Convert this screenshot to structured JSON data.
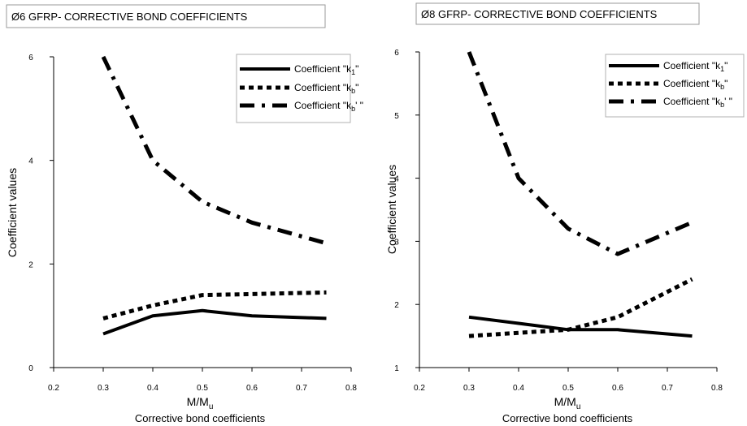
{
  "chart_data": [
    {
      "type": "line",
      "title": "Ø6 GFRP- CORRECTIVE BOND COEFFICIENTS",
      "xlabel_main": "M/M",
      "xlabel_sub": "u",
      "ylabel": "Coefficient values",
      "caption": "Corrective bond coefficients",
      "xlim": [
        0.2,
        0.8
      ],
      "ylim": [
        0,
        6
      ],
      "xticks": [
        "0.2",
        "0.3",
        "0.4",
        "0.5",
        "0.6",
        "0.7",
        "0.8"
      ],
      "yticks": [
        "0",
        "2",
        "4",
        "6"
      ],
      "legend_position": "top-right",
      "series": [
        {
          "legend_main": "Coefficient \"k",
          "legend_sub": "1",
          "legend_end": "\"",
          "style": "solid",
          "x": [
            0.3,
            0.4,
            0.5,
            0.6,
            0.75
          ],
          "y": [
            0.65,
            1.0,
            1.1,
            1.0,
            0.95
          ]
        },
        {
          "legend_main": "Coefficient \"k",
          "legend_sub": "b",
          "legend_end": "\"",
          "style": "dotted",
          "x": [
            0.3,
            0.4,
            0.5,
            0.6,
            0.75
          ],
          "y": [
            0.95,
            1.2,
            1.4,
            1.42,
            1.45
          ]
        },
        {
          "legend_main": "Coefficient \"k",
          "legend_sub": "b",
          "legend_end": "' \"",
          "style": "dashdot",
          "x": [
            0.3,
            0.4,
            0.5,
            0.6,
            0.75
          ],
          "y": [
            6.0,
            4.0,
            3.2,
            2.8,
            2.4
          ]
        }
      ]
    },
    {
      "type": "line",
      "title": "Ø8 GFRP- CORRECTIVE BOND COEFFICIENTS",
      "xlabel_main": "M/M",
      "xlabel_sub": "u",
      "ylabel": "Coefficient values",
      "caption": "Corrective bond coefficients",
      "xlim": [
        0.2,
        0.8
      ],
      "ylim": [
        1,
        6
      ],
      "xticks": [
        "0.2",
        "0.3",
        "0.4",
        "0.5",
        "0.6",
        "0.7",
        "0.8"
      ],
      "yticks": [
        "1",
        "2",
        "3",
        "4",
        "5",
        "6"
      ],
      "legend_position": "top-right",
      "series": [
        {
          "legend_main": "Coefficient \"k",
          "legend_sub": "1",
          "legend_end": "\"",
          "style": "solid",
          "x": [
            0.3,
            0.4,
            0.5,
            0.6,
            0.75
          ],
          "y": [
            1.8,
            1.7,
            1.6,
            1.6,
            1.5
          ]
        },
        {
          "legend_main": "Coefficient \"k",
          "legend_sub": "b",
          "legend_end": "\"",
          "style": "dotted",
          "x": [
            0.3,
            0.4,
            0.5,
            0.6,
            0.75
          ],
          "y": [
            1.5,
            1.55,
            1.6,
            1.8,
            2.4
          ]
        },
        {
          "legend_main": "Coefficient \"k",
          "legend_sub": "b",
          "legend_end": "' \"",
          "style": "dashdot",
          "x": [
            0.3,
            0.4,
            0.5,
            0.6,
            0.75
          ],
          "y": [
            6.0,
            4.0,
            3.2,
            2.8,
            3.3
          ]
        }
      ]
    }
  ]
}
